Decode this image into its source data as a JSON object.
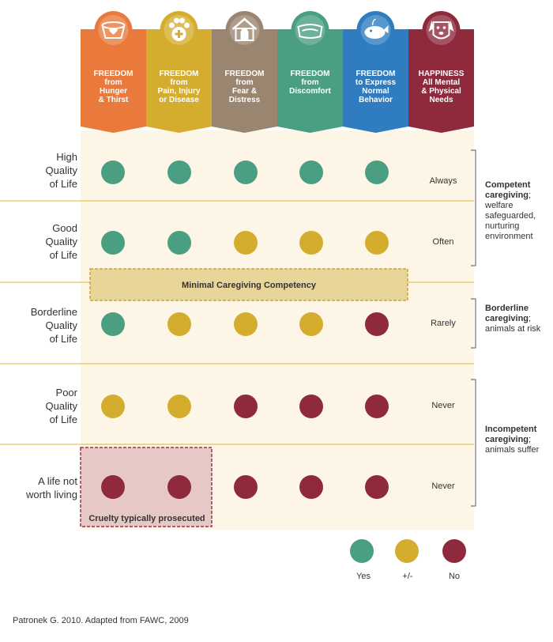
{
  "colors": {
    "yes": "#4a9e82",
    "mid": "#d4ad2e",
    "no": "#8e2a3b",
    "background": "#fdf6e6",
    "line": "#e7c35a"
  },
  "columns": [
    {
      "title": "FREEDOM",
      "sub": [
        "from",
        "Hunger",
        "& Thirst"
      ],
      "color": "#ea7a3c",
      "icon": "bowl-heart-icon"
    },
    {
      "title": "FREEDOM",
      "sub": [
        "from",
        "Pain, Injury",
        "or Disease"
      ],
      "color": "#d4ad2e",
      "icon": "paw-plus-icon"
    },
    {
      "title": "FREEDOM",
      "sub": [
        "from",
        "Fear &",
        "Distress"
      ],
      "color": "#9a8570",
      "icon": "doghouse-icon"
    },
    {
      "title": "FREEDOM",
      "sub": [
        "from",
        "Discomfort"
      ],
      "color": "#4a9e82",
      "icon": "dog-bed-icon"
    },
    {
      "title": "FREEDOM",
      "sub": [
        "to Express",
        "Normal",
        "Behavior"
      ],
      "color": "#2f7dc0",
      "icon": "whale-toy-icon"
    },
    {
      "title": "HAPPINESS",
      "sub": [
        "All Mental",
        "& Physical",
        "Needs"
      ],
      "color": "#8e2a3b",
      "icon": "dog-face-icon"
    }
  ],
  "rows": [
    {
      "label": [
        "High",
        "Quality",
        "of Life"
      ],
      "rating": "Always",
      "dots": [
        "yes",
        "yes",
        "yes",
        "yes",
        "yes"
      ]
    },
    {
      "label": [
        "Good",
        "Quality",
        "of Life"
      ],
      "rating": "Often",
      "dots": [
        "yes",
        "yes",
        "mid",
        "mid",
        "mid"
      ]
    },
    {
      "label": [
        "Borderline",
        "Quality",
        "of Life"
      ],
      "rating": "Rarely",
      "dots": [
        "yes",
        "mid",
        "mid",
        "mid",
        "no"
      ]
    },
    {
      "label": [
        "Poor",
        "Quality",
        "of Life"
      ],
      "rating": "Never",
      "dots": [
        "mid",
        "mid",
        "no",
        "no",
        "no"
      ]
    },
    {
      "label": [
        "A life not",
        "worth living"
      ],
      "rating": "Never",
      "dots": [
        "no",
        "no",
        "no",
        "no",
        "no"
      ]
    }
  ],
  "bands": {
    "minimal": "Minimal Caregiving Competency",
    "cruelty": "Cruelty typically prosecuted"
  },
  "caregiving": [
    {
      "bold": "Competent caregiving",
      "rest": "; welfare safeguarded, nurturing environment"
    },
    {
      "bold": "Borderline caregiving",
      "rest": "; animals at risk"
    },
    {
      "bold": "Incompetent caregiving",
      "rest": "; animals suffer"
    }
  ],
  "legend": [
    {
      "key": "yes",
      "label": "Yes"
    },
    {
      "key": "mid",
      "label": "+/-"
    },
    {
      "key": "no",
      "label": "No"
    }
  ],
  "footer": "Patronek G. 2010. Adapted from FAWC, 2009"
}
